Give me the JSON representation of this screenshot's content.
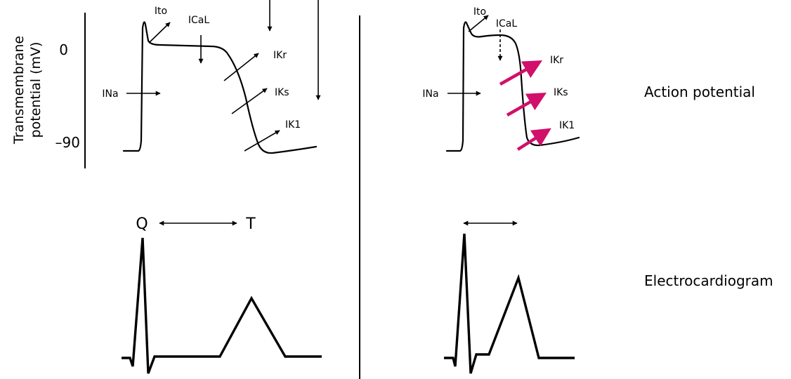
{
  "axis": {
    "title_line1": "Transmembrane",
    "title_line2": "potential (mV)",
    "tick_top": "0",
    "tick_bottom": "–90"
  },
  "currents": {
    "ito": "Ito",
    "ical": "ICaL",
    "ina": "INa",
    "ikr": "IKr",
    "iks": "IKs",
    "ik1": "IK1"
  },
  "ecg": {
    "q": "Q",
    "t": "T"
  },
  "row_labels": {
    "action_potential": "Action potential",
    "electrocardiogram": "Electrocardiogram"
  },
  "colors": {
    "line": "#000000",
    "accent": "#d0106a",
    "background": "#ffffff"
  }
}
